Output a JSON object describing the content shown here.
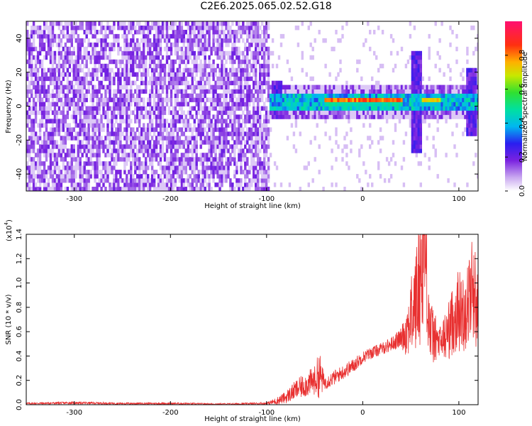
{
  "title": "C2E6.2025.065.02.52.G18",
  "chart_data": [
    {
      "type": "heatmap",
      "xlabel": "Height of straight line (km)",
      "ylabel": "Frequency (Hz)",
      "xlim": [
        -350,
        120
      ],
      "ylim": [
        -50,
        50
      ],
      "xticks": [
        -300,
        -200,
        -100,
        0,
        100
      ],
      "xtick_labels": [
        "-300",
        "-200",
        "-100",
        "0",
        "100"
      ],
      "yticks": [
        -40,
        -20,
        0,
        20,
        40
      ],
      "ytick_labels": [
        "-40",
        "-20",
        "0",
        "20",
        "40"
      ],
      "colorbar": {
        "label": "Normalized spectral amplitude",
        "range": [
          0,
          1
        ],
        "ticks": [
          0.0,
          0.2,
          0.4,
          0.6,
          0.8
        ],
        "tick_labels": [
          "0.0",
          "0.2",
          "0.4",
          "0.6",
          "0.8"
        ]
      },
      "features": {
        "noise_region_x": [
          -350,
          -98
        ],
        "signal_band_center_hz": 2,
        "signal_segments": [
          {
            "x": [
              -40,
              40
            ],
            "peak_amplitude": 1.0
          },
          {
            "x": [
              60,
              80
            ],
            "peak_amplitude": 0.9
          }
        ],
        "broadband_bursts": [
          {
            "x": -90,
            "half_width_hz": 12
          },
          {
            "x": 55,
            "half_width_hz": 30
          },
          {
            "x": 112,
            "half_width_hz": 20
          }
        ]
      }
    },
    {
      "type": "line",
      "xlabel": "Height of straight line (km)",
      "ylabel": "SNR (10 * v/v)",
      "multiplier_label": "(x10",
      "multiplier_exp": "4",
      "multiplier_close": ")",
      "xlim": [
        -350,
        120
      ],
      "ylim": [
        0,
        1.4
      ],
      "xticks": [
        -300,
        -200,
        -100,
        0,
        100
      ],
      "xtick_labels": [
        "-300",
        "-200",
        "-100",
        "0",
        "100"
      ],
      "yticks": [
        0.0,
        0.2,
        0.4,
        0.6,
        0.8,
        1.0,
        1.2,
        1.4
      ],
      "ytick_labels": [
        "0.0",
        "0.2",
        "0.4",
        "0.6",
        "0.8",
        "1.0",
        "1.2",
        "1.4"
      ],
      "series": [
        {
          "color": "#e83030",
          "x": [
            -350,
            -300,
            -250,
            -200,
            -150,
            -100,
            -90,
            -80,
            -70,
            -60,
            -50,
            -45,
            -40,
            -30,
            -20,
            -10,
            0,
            10,
            20,
            30,
            40,
            45,
            50,
            55,
            58,
            60,
            63,
            65,
            68,
            70,
            75,
            80,
            85,
            90,
            95,
            100,
            105,
            110,
            115,
            120
          ],
          "y": [
            0.01,
            0.015,
            0.01,
            0.01,
            0.005,
            0.01,
            0.03,
            0.06,
            0.12,
            0.16,
            0.2,
            0.25,
            0.18,
            0.22,
            0.27,
            0.32,
            0.39,
            0.43,
            0.46,
            0.5,
            0.55,
            0.6,
            0.72,
            0.85,
            0.95,
            1.05,
            1.25,
            1.3,
            0.85,
            0.6,
            0.55,
            0.5,
            0.55,
            0.62,
            0.72,
            0.78,
            0.74,
            0.85,
            1.0,
            0.7
          ],
          "spread": [
            0.008,
            0.01,
            0.008,
            0.008,
            0.006,
            0.01,
            0.03,
            0.05,
            0.08,
            0.1,
            0.12,
            0.2,
            0.06,
            0.06,
            0.06,
            0.06,
            0.05,
            0.05,
            0.05,
            0.06,
            0.08,
            0.2,
            0.3,
            0.45,
            0.5,
            0.55,
            0.6,
            0.55,
            0.4,
            0.3,
            0.2,
            0.15,
            0.2,
            0.25,
            0.3,
            0.35,
            0.3,
            0.4,
            0.45,
            0.35
          ]
        }
      ]
    }
  ]
}
